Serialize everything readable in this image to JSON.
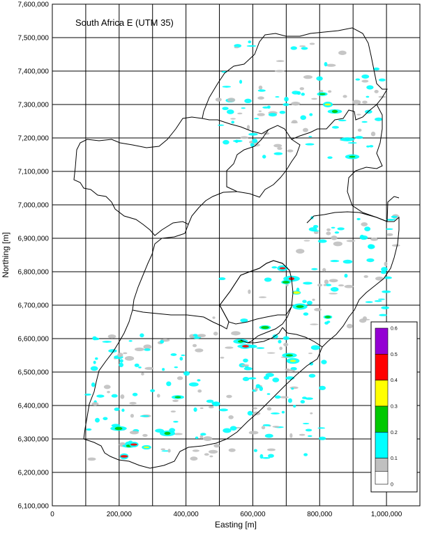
{
  "map": {
    "title": "South Africa E (UTM 35)",
    "x_axis_label": "Easting [m]",
    "y_axis_label": "Northing [m]",
    "x_ticks": [
      "0",
      "200,000",
      "400,000",
      "600,000",
      "800,000",
      "1,000,000"
    ],
    "y_ticks": [
      "7,600,000",
      "7,500,000",
      "7,400,000",
      "7,300,000",
      "7,200,000",
      "7,100,000",
      "7,000,000",
      "6,900,000",
      "6,800,000",
      "6,700,000",
      "6,600,000",
      "6,500,000",
      "6,400,000",
      "6,300,000",
      "6,200,000",
      "6,100,000"
    ],
    "x_range": [
      0,
      1100000
    ],
    "y_range": [
      6100000,
      7600000
    ],
    "grid": true
  },
  "colorbar": {
    "ticks": [
      "0.6",
      "0.5",
      "0.4",
      "0.3",
      "0.2",
      "0.1",
      "0"
    ],
    "bands": [
      {
        "from": 0.5,
        "to": 0.6,
        "color": "#9400d3"
      },
      {
        "from": 0.4,
        "to": 0.5,
        "color": "#ff0000"
      },
      {
        "from": 0.3,
        "to": 0.4,
        "color": "#ffff00"
      },
      {
        "from": 0.2,
        "to": 0.3,
        "color": "#00c800"
      },
      {
        "from": 0.1,
        "to": 0.2,
        "color": "#00ffff"
      },
      {
        "from": 0.05,
        "to": 0.1,
        "color": "#c0c0c0"
      },
      {
        "from": 0.0,
        "to": 0.05,
        "color": "#ffffff"
      }
    ]
  },
  "colors": {
    "cyan": "#00ffff",
    "green": "#00c800",
    "yellow": "#ffff00",
    "red": "#ff0000",
    "gray": "#c0c0c0",
    "border": "#000000"
  }
}
